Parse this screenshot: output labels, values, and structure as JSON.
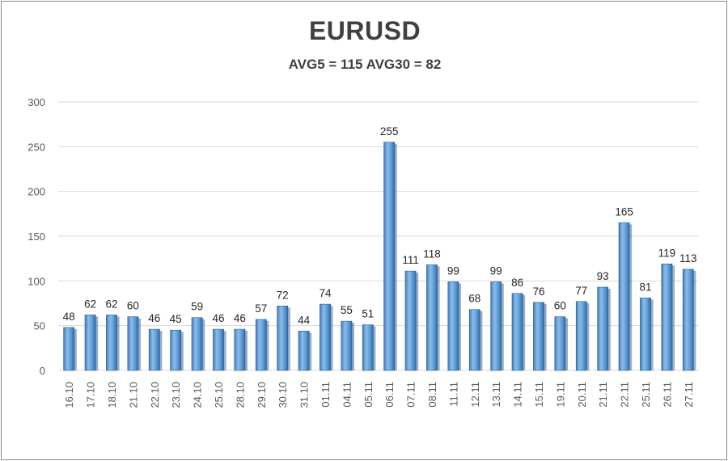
{
  "chart_data": {
    "type": "bar",
    "title": "EURUSD",
    "subtitle": "AVG5 = 115 AVG30 = 82",
    "xlabel": "",
    "ylabel": "",
    "ylim": [
      0,
      300
    ],
    "yticks": [
      0,
      50,
      100,
      150,
      200,
      250,
      300
    ],
    "grid": true,
    "legend": "none",
    "bar_color": "#5b9bd5",
    "categories": [
      "16.10",
      "17.10",
      "18.10",
      "21.10",
      "22.10",
      "23.10",
      "24.10",
      "25.10",
      "28.10",
      "29.10",
      "30.10",
      "31.10",
      "01.11",
      "04.11",
      "05.11",
      "06.11",
      "07.11",
      "08.11",
      "11.11",
      "12.11",
      "13.11",
      "14.11",
      "15.11",
      "19.11",
      "20.11",
      "21.11",
      "22.11",
      "25.11",
      "26.11",
      "27.11"
    ],
    "values": [
      48,
      62,
      62,
      60,
      46,
      45,
      59,
      46,
      46,
      57,
      72,
      44,
      74,
      55,
      51,
      255,
      111,
      118,
      99,
      68,
      99,
      86,
      76,
      60,
      77,
      93,
      165,
      81,
      119,
      113
    ]
  }
}
